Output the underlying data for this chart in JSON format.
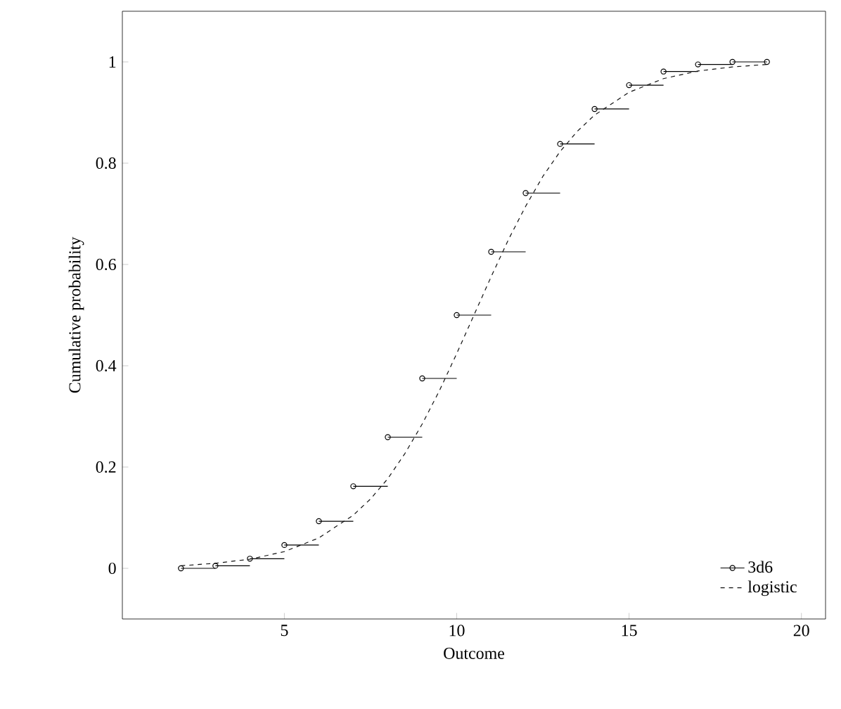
{
  "chart_data": {
    "type": "step",
    "xlabel": "Outcome",
    "ylabel": "Cumulative probability",
    "xlim": [
      0.3,
      20.7
    ],
    "ylim": [
      -0.1,
      1.1
    ],
    "xticks": [
      5,
      10,
      15,
      20
    ],
    "yticks": [
      0,
      0.2,
      0.4,
      0.6,
      0.8,
      1
    ],
    "grid": false,
    "legend": "bottom right",
    "series": [
      {
        "name": "3d6",
        "color": "#000000",
        "marker": "circle",
        "line_style": "solid",
        "x": [
          2,
          3,
          4,
          5,
          6,
          7,
          8,
          9,
          10,
          11,
          12,
          13,
          14,
          15,
          16,
          17,
          18,
          19
        ],
        "values": [
          0,
          0.005,
          0.019,
          0.046,
          0.093,
          0.162,
          0.259,
          0.375,
          0.5,
          0.625,
          0.741,
          0.838,
          0.907,
          0.954,
          0.981,
          0.995,
          1,
          1
        ]
      },
      {
        "name": "logistic",
        "type": "line",
        "color": "#111111",
        "marker": "none",
        "line_style": "dashed",
        "x": [
          2,
          3,
          4,
          5,
          6,
          7,
          7.5,
          8,
          8.5,
          9,
          9.5,
          10,
          10.5,
          11,
          11.5,
          12,
          12.5,
          13,
          13.5,
          14,
          15,
          16,
          17,
          18,
          19
        ],
        "values": [
          0.005,
          0.01,
          0.018,
          0.033,
          0.06,
          0.105,
          0.137,
          0.177,
          0.227,
          0.285,
          0.351,
          0.424,
          0.5,
          0.576,
          0.649,
          0.715,
          0.774,
          0.823,
          0.863,
          0.895,
          0.94,
          0.967,
          0.982,
          0.99,
          0.995
        ]
      }
    ]
  }
}
